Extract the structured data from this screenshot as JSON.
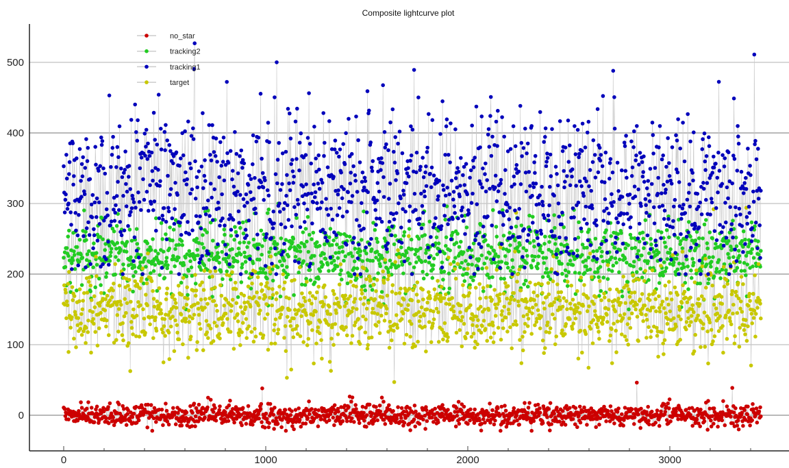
{
  "chart_data": {
    "type": "scatter",
    "title": "Composite lightcurve plot",
    "xlabel": "",
    "ylabel": "",
    "xlim": [
      -170,
      3600
    ],
    "ylim": [
      -50,
      550
    ],
    "x_ticks": [
      "0",
      "1000",
      "2000",
      "3000"
    ],
    "x_tick_values": [
      0,
      1000,
      2000,
      3000
    ],
    "y_ticks": [
      "0",
      "100",
      "200",
      "300",
      "400",
      "500"
    ],
    "y_tick_values": [
      0,
      100,
      200,
      300,
      400,
      500
    ],
    "grid": "horizontal",
    "legend_position": "top-left",
    "connecting_line_color": "#c8c8c8",
    "x_range": [
      0,
      3450
    ],
    "series": [
      {
        "name": "no_star",
        "color": "#cc0000",
        "typical_center": 0,
        "typical_spread": 8,
        "min": -22,
        "max": 48
      },
      {
        "name": "tracking2",
        "color": "#22cc22",
        "typical_center": 225,
        "typical_spread": 25,
        "min": 150,
        "max": 300
      },
      {
        "name": "tracking1",
        "color": "#0000bb",
        "typical_center": 320,
        "typical_spread": 55,
        "min": 200,
        "max": 527
      },
      {
        "name": "target",
        "color": "#c8c800",
        "typical_center": 150,
        "typical_spread": 30,
        "min": 47,
        "max": 300
      }
    ]
  }
}
